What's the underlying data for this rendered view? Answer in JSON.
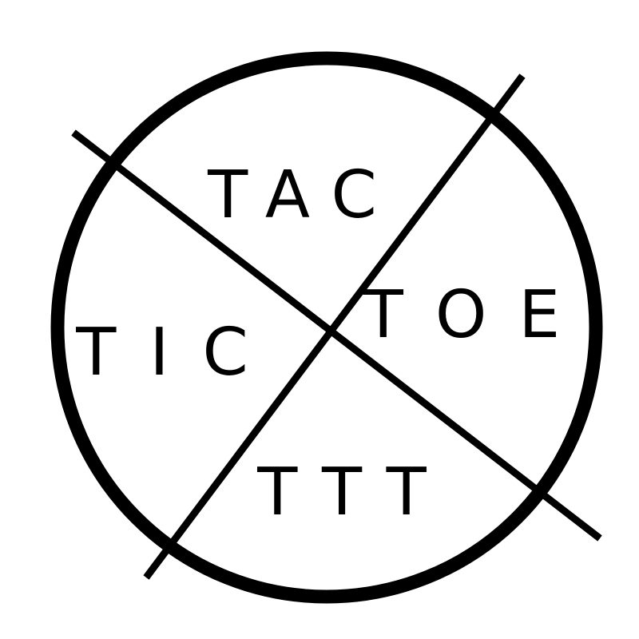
{
  "logo": {
    "labels": {
      "top": "TAC",
      "left": "TIC",
      "right": "TOE",
      "bottom": "TTT"
    },
    "colors": {
      "ink": "#000000",
      "background": "#ffffff"
    }
  }
}
